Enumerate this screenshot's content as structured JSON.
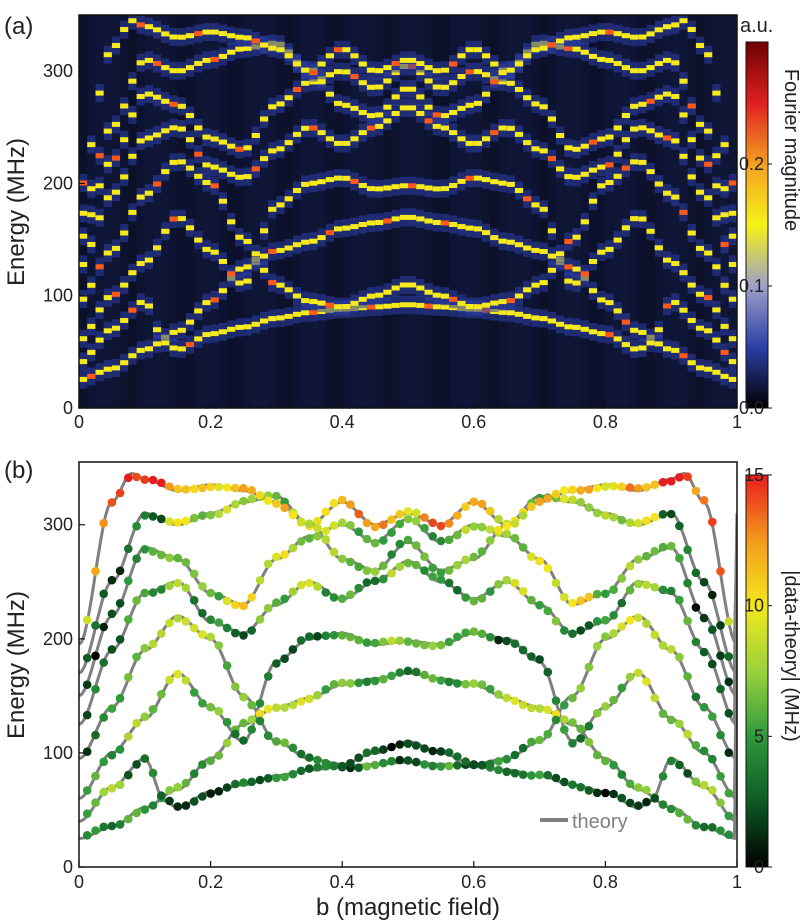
{
  "chart_data": [
    {
      "panel_label": "(a)",
      "type": "heatmap",
      "xlim": [
        0,
        1
      ],
      "ylim": [
        0,
        350
      ],
      "xticks": [
        "0",
        "0.2",
        "0.4",
        "0.6",
        "0.8",
        "1"
      ],
      "yticks": [
        "0",
        "100",
        "200",
        "300"
      ],
      "xtick_values": [
        0,
        0.2,
        0.4,
        0.6,
        0.8,
        1
      ],
      "ytick_values": [
        0,
        100,
        200,
        300
      ],
      "ylabel": "Energy (MHz)",
      "xlabel": "",
      "colorbar": {
        "unit": "a.u.",
        "label": "Fourier magnitude",
        "ticks": [
          "0.0",
          "0.1",
          "0.2"
        ],
        "tick_values": [
          0.0,
          0.1,
          0.2
        ],
        "range": [
          0.0,
          0.3
        ],
        "colors": [
          "#000000",
          "#2b3fa8",
          "#9ea0c8",
          "#f5f218",
          "#f5a020",
          "#e02020",
          "#700000"
        ]
      },
      "background_color": "#05060c",
      "band_color": "#f6ea1c",
      "bright_color": "#ff5a1a",
      "haze_color": "#2d3fa8",
      "bands_reference": "panel_b_theory",
      "x_spacing": 0.0125
    },
    {
      "panel_label": "(b)",
      "type": "scatter",
      "xlim": [
        0,
        1
      ],
      "ylim": [
        0,
        355
      ],
      "xticks": [
        "0",
        "0.2",
        "0.4",
        "0.6",
        "0.8",
        "1"
      ],
      "yticks": [
        "0",
        "100",
        "200",
        "300"
      ],
      "xtick_values": [
        0,
        0.2,
        0.4,
        0.6,
        0.8,
        1
      ],
      "ytick_values": [
        0,
        100,
        200,
        300
      ],
      "xlabel": "b (magnetic field)",
      "ylabel": "Energy (MHz)",
      "legend": {
        "label": "theory",
        "position": "bottom-right",
        "color": "#808080"
      },
      "colorbar": {
        "label": "|data-theory| (MHz)",
        "ticks": [
          "0",
          "5",
          "10",
          "15"
        ],
        "tick_values": [
          0,
          5,
          10,
          15
        ],
        "range": [
          0,
          15
        ],
        "colors": [
          "#000000",
          "#0d5a24",
          "#2f9a3c",
          "#9ad23c",
          "#f4e81c",
          "#f49a1c",
          "#e81c1c"
        ]
      },
      "point_spacing": 0.0125,
      "theory_curves": [
        {
          "name": "band-1",
          "x": [
            0,
            0.05,
            0.1,
            0.15,
            0.2,
            0.25,
            0.3,
            0.35,
            0.4,
            0.45,
            0.5
          ],
          "y": [
            25,
            35,
            52,
            68,
            95,
            125,
            140,
            148,
            160,
            165,
            170
          ]
        },
        {
          "name": "band-2",
          "x": [
            0,
            0.05,
            0.1,
            0.13,
            0.15,
            0.2,
            0.25,
            0.3,
            0.35,
            0.4,
            0.45,
            0.5
          ],
          "y": [
            40,
            70,
            95,
            58,
            52,
            66,
            72,
            80,
            85,
            88,
            90,
            92
          ]
        },
        {
          "name": "band-3",
          "x": [
            0,
            0.05,
            0.1,
            0.15,
            0.2,
            0.25,
            0.3,
            0.35,
            0.4,
            0.45,
            0.5
          ],
          "y": [
            60,
            100,
            130,
            170,
            140,
            110,
            180,
            200,
            205,
            195,
            198
          ]
        },
        {
          "name": "band-4",
          "x": [
            0,
            0.05,
            0.1,
            0.15,
            0.2,
            0.25,
            0.3,
            0.35,
            0.4,
            0.45,
            0.5
          ],
          "y": [
            95,
            140,
            190,
            220,
            200,
            150,
            110,
            95,
            90,
            100,
            110
          ]
        },
        {
          "name": "band-5",
          "x": [
            0,
            0.05,
            0.1,
            0.15,
            0.2,
            0.25,
            0.3,
            0.35,
            0.4,
            0.45,
            0.5
          ],
          "y": [
            125,
            190,
            240,
            250,
            215,
            205,
            230,
            250,
            235,
            250,
            268
          ]
        },
        {
          "name": "band-6",
          "x": [
            0,
            0.05,
            0.1,
            0.15,
            0.2,
            0.25,
            0.3,
            0.35,
            0.4,
            0.45,
            0.5
          ],
          "y": [
            150,
            220,
            280,
            270,
            240,
            230,
            270,
            290,
            300,
            285,
            305
          ]
        },
        {
          "name": "band-7",
          "x": [
            0,
            0.05,
            0.1,
            0.15,
            0.2,
            0.25,
            0.3,
            0.35,
            0.4,
            0.45,
            0.5
          ],
          "y": [
            170,
            250,
            310,
            300,
            310,
            320,
            325,
            300,
            320,
            300,
            310
          ]
        },
        {
          "name": "band-8",
          "x": [
            0,
            0.05,
            0.08,
            0.1,
            0.15,
            0.2,
            0.25,
            0.3,
            0.35,
            0.4,
            0.45,
            0.5
          ],
          "y": [
            195,
            320,
            345,
            340,
            330,
            335,
            330,
            320,
            300,
            270,
            260,
            285
          ]
        }
      ],
      "data_error_mhz": [
        [
          2,
          3,
          4,
          5,
          4,
          6,
          8,
          7,
          5,
          4,
          3
        ],
        [
          5,
          6,
          2,
          1,
          0,
          1,
          2,
          3,
          2,
          1,
          4,
          0
        ],
        [
          3,
          4,
          6,
          7,
          5,
          3,
          2,
          1,
          4,
          5,
          6
        ],
        [
          1,
          3,
          6,
          8,
          7,
          5,
          4,
          3,
          2,
          1,
          0
        ],
        [
          0,
          2,
          4,
          6,
          3,
          2,
          5,
          7,
          4,
          3,
          6
        ],
        [
          1,
          0,
          4,
          6,
          5,
          9,
          8,
          6,
          7,
          4,
          5
        ],
        [
          1,
          1,
          2,
          8,
          6,
          7,
          5,
          8,
          10,
          12,
          9
        ],
        [
          8,
          12,
          14,
          11,
          9,
          10,
          10,
          8,
          6,
          5,
          4
        ]
      ]
    }
  ]
}
